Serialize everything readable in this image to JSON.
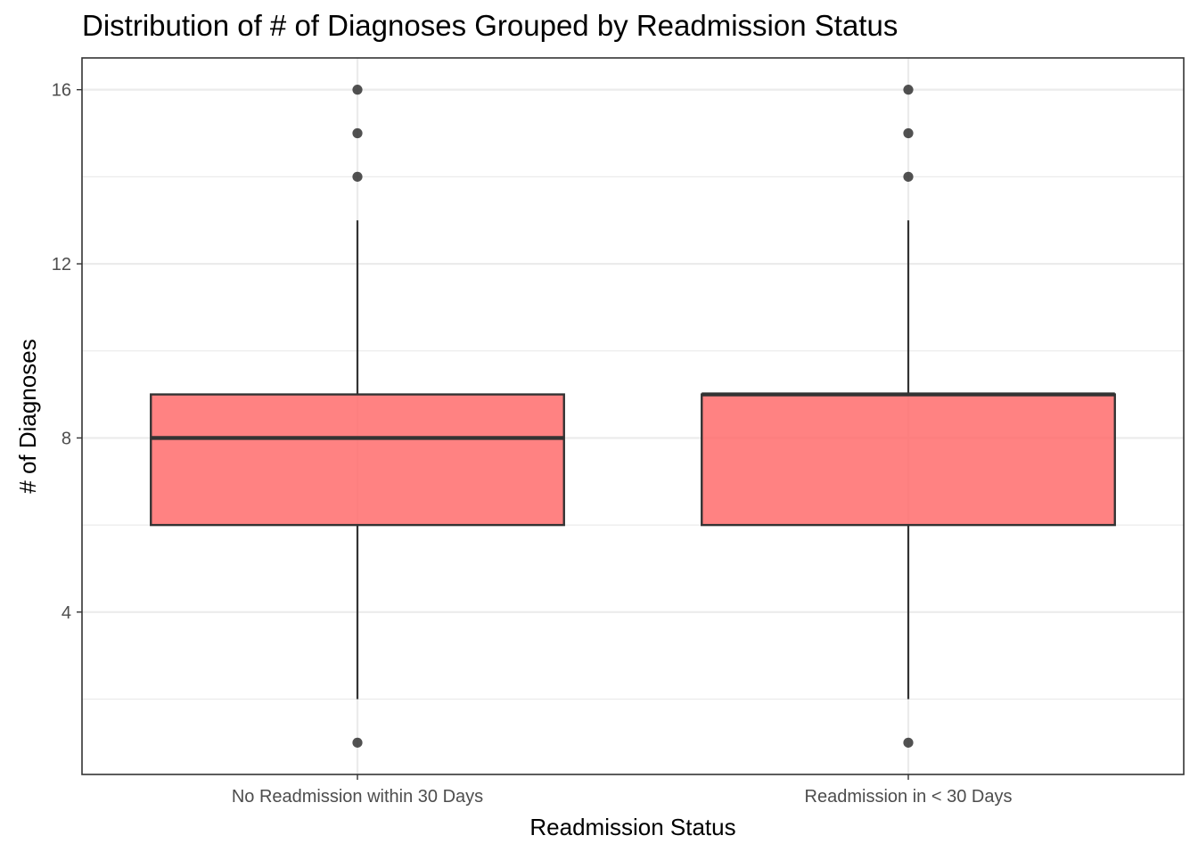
{
  "chart_data": {
    "type": "boxplot",
    "title": "Distribution of # of Diagnoses Grouped by Readmission Status",
    "xlabel": "Readmission Status",
    "ylabel": "# of Diagnoses",
    "ylim": [
      0.27,
      16.73
    ],
    "yticks": [
      4,
      8,
      12,
      16
    ],
    "grid": true,
    "fill_color": "#ff6666",
    "box_stroke": "#333333",
    "groups": [
      {
        "category": "No Readmission within 30 Days",
        "min": 2,
        "q1": 6,
        "median": 8,
        "q3": 9,
        "max": 13,
        "outliers": [
          1,
          14,
          15,
          16
        ]
      },
      {
        "category": "Readmission in < 30 Days",
        "min": 2,
        "q1": 6,
        "median": 9,
        "q3": 9,
        "max": 13,
        "outliers": [
          1,
          14,
          15,
          16
        ]
      }
    ]
  }
}
